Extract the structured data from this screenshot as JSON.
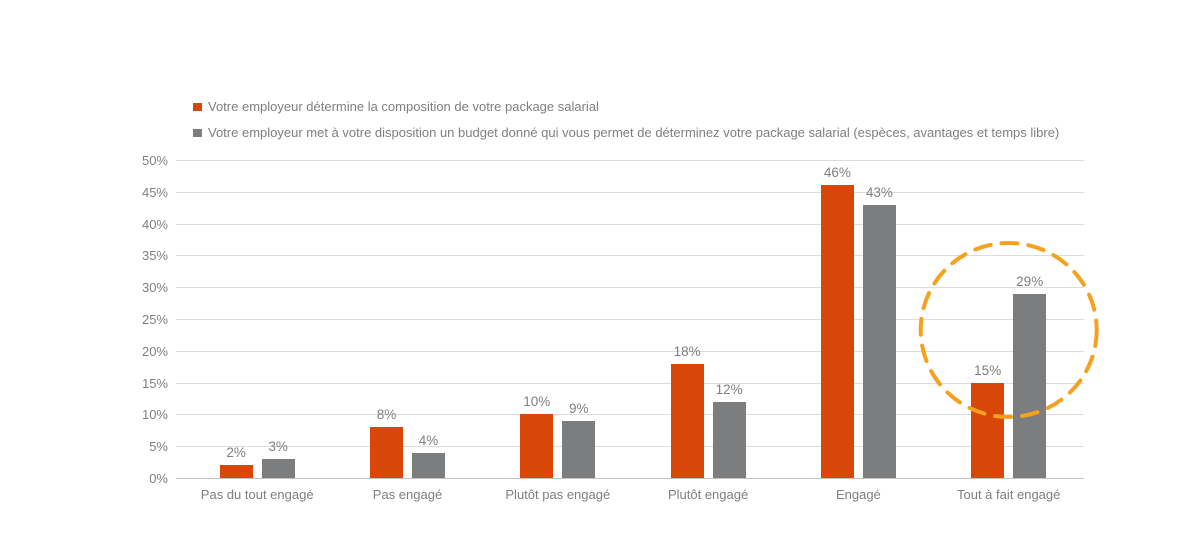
{
  "chart_data": {
    "type": "bar",
    "title": "",
    "xlabel": "",
    "ylabel": "",
    "categories": [
      "Pas du tout engagé",
      "Pas engagé",
      "Plutôt pas engagé",
      "Plutôt engagé",
      "Engagé",
      "Tout à fait engagé"
    ],
    "series": [
      {
        "name": "Votre employeur détermine la composition de votre package salarial",
        "color": "#d84708",
        "values": [
          2,
          8,
          10,
          18,
          46,
          15
        ],
        "labels": [
          "2%",
          "8%",
          "10%",
          "18%",
          "46%",
          "15%"
        ]
      },
      {
        "name": "Votre employeur met à votre disposition un budget donné qui vous permet de déterminez votre package salarial (espèces, avantages et temps libre)",
        "color": "#7b7d7f",
        "values": [
          3,
          4,
          9,
          12,
          43,
          29
        ],
        "labels": [
          "3%",
          "4%",
          "9%",
          "12%",
          "43%",
          "29%"
        ]
      }
    ],
    "ylim": [
      0,
      50
    ],
    "ytick_step": 5,
    "yticks": [
      "0%",
      "5%",
      "10%",
      "15%",
      "20%",
      "25%",
      "30%",
      "35%",
      "40%",
      "45%",
      "50%"
    ],
    "grid": true,
    "legend_position": "top-left",
    "annotation": {
      "type": "dashed-circle",
      "target_category": "Tout à fait engagé",
      "color": "#f5a11e"
    }
  }
}
